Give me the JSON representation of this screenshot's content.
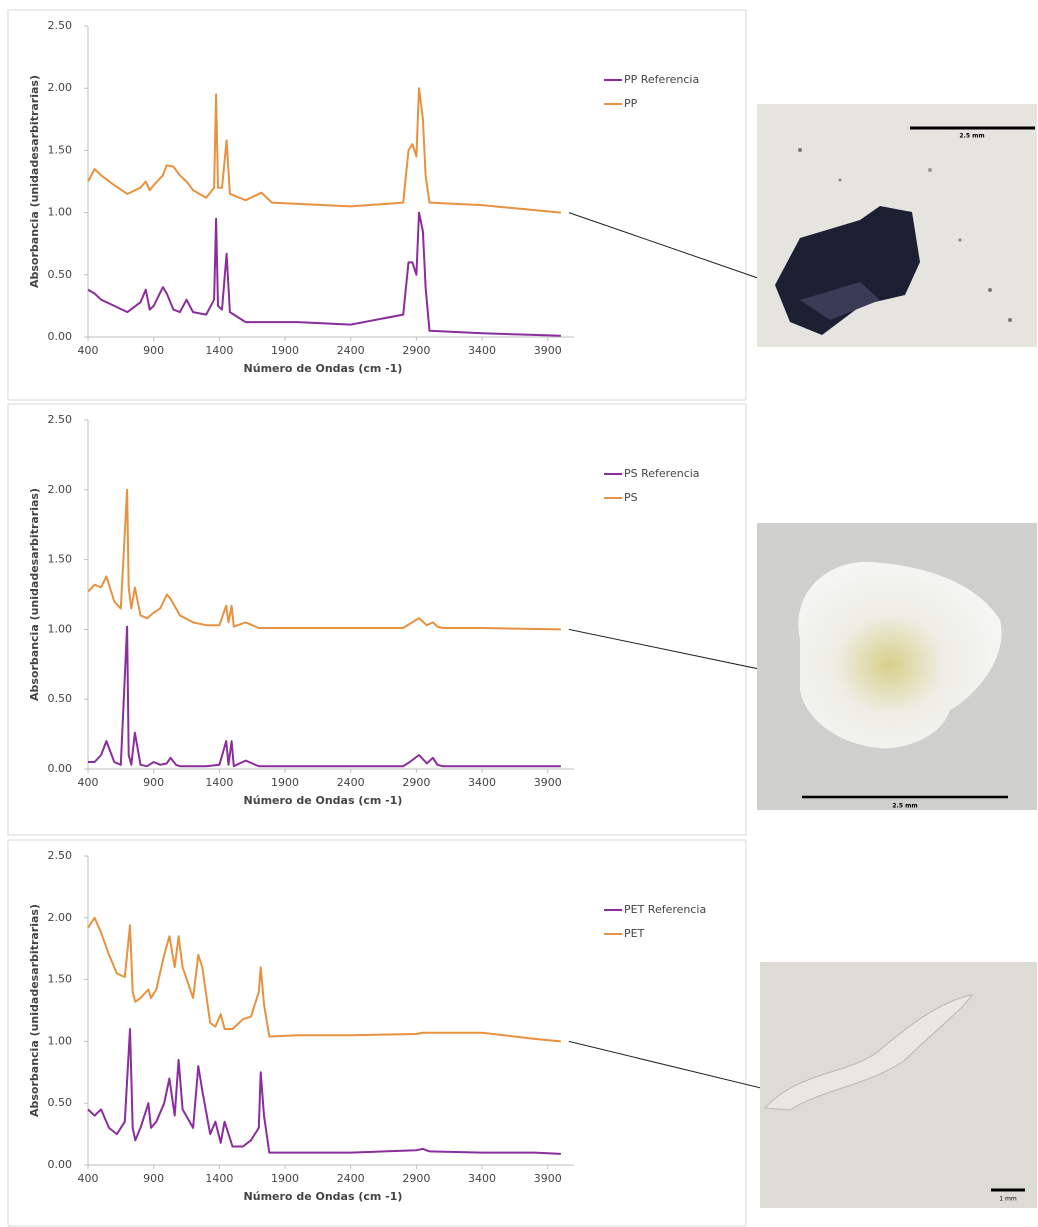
{
  "chart_data": [
    {
      "type": "line",
      "ylabel": "Absorbancia (unidadesarbitrarias)",
      "xlabel": "Número de Ondas (cm -1)",
      "x": [
        400,
        450,
        500,
        600,
        700,
        800,
        840,
        870,
        900,
        970,
        1000,
        1050,
        1100,
        1150,
        1200,
        1300,
        1360,
        1375,
        1390,
        1420,
        1455,
        1480,
        1600,
        1720,
        1800,
        2000,
        2400,
        2800,
        2840,
        2870,
        2900,
        2920,
        2950,
        2970,
        3000,
        3400,
        3700,
        4000
      ],
      "series": [
        {
          "name": "PP Referencia",
          "color": "#8b2d9c",
          "values": [
            0.38,
            0.35,
            0.3,
            0.25,
            0.2,
            0.28,
            0.38,
            0.22,
            0.25,
            0.4,
            0.35,
            0.22,
            0.2,
            0.3,
            0.2,
            0.18,
            0.3,
            0.95,
            0.25,
            0.22,
            0.67,
            0.2,
            0.12,
            0.12,
            0.12,
            0.12,
            0.1,
            0.18,
            0.6,
            0.6,
            0.5,
            1.0,
            0.85,
            0.4,
            0.05,
            0.03,
            0.02,
            0.01
          ]
        },
        {
          "name": "PP",
          "color": "#e8913e",
          "values": [
            1.25,
            1.35,
            1.3,
            1.22,
            1.15,
            1.2,
            1.25,
            1.18,
            1.22,
            1.3,
            1.38,
            1.37,
            1.3,
            1.25,
            1.18,
            1.12,
            1.2,
            1.95,
            1.2,
            1.2,
            1.58,
            1.15,
            1.1,
            1.16,
            1.08,
            1.07,
            1.05,
            1.08,
            1.5,
            1.55,
            1.45,
            2.0,
            1.75,
            1.3,
            1.08,
            1.06,
            1.03,
            1.0
          ]
        }
      ],
      "xlim": [
        400,
        4100
      ],
      "xticks": [
        400,
        900,
        1400,
        1900,
        2400,
        2900,
        3400,
        3900
      ],
      "ylim": [
        0,
        2.5
      ],
      "yticks": [
        {
          "value": 0,
          "label": "0.00"
        },
        {
          "value": 0.5,
          "label": "0.50"
        },
        {
          "value": 1,
          "label": "1.00"
        },
        {
          "value": 1.5,
          "label": "1.50"
        },
        {
          "value": 2,
          "label": "2.00"
        },
        {
          "value": 2.5,
          "label": "2.50"
        }
      ]
    },
    {
      "type": "line",
      "ylabel": "Absorbancia (unidadesarbitrarias)",
      "xlabel": "Número de Ondas (cm -1)",
      "x": [
        400,
        450,
        500,
        540,
        600,
        650,
        698,
        710,
        730,
        757,
        800,
        850,
        900,
        950,
        1000,
        1028,
        1070,
        1100,
        1200,
        1300,
        1400,
        1452,
        1470,
        1493,
        1510,
        1600,
        1700,
        2000,
        2400,
        2800,
        2850,
        2920,
        2980,
        3026,
        3060,
        3100,
        3400,
        4000
      ],
      "series": [
        {
          "name": "PS Referencia",
          "color": "#8b2d9c",
          "values": [
            0.05,
            0.05,
            0.1,
            0.2,
            0.05,
            0.03,
            1.02,
            0.1,
            0.03,
            0.26,
            0.03,
            0.02,
            0.05,
            0.03,
            0.04,
            0.08,
            0.03,
            0.02,
            0.02,
            0.02,
            0.03,
            0.2,
            0.03,
            0.2,
            0.02,
            0.06,
            0.02,
            0.02,
            0.02,
            0.02,
            0.05,
            0.1,
            0.04,
            0.08,
            0.03,
            0.02,
            0.02,
            0.02
          ]
        },
        {
          "name": "PS",
          "color": "#e8913e",
          "values": [
            1.27,
            1.32,
            1.3,
            1.38,
            1.2,
            1.15,
            2.0,
            1.3,
            1.15,
            1.3,
            1.1,
            1.08,
            1.12,
            1.15,
            1.25,
            1.22,
            1.15,
            1.1,
            1.05,
            1.03,
            1.03,
            1.17,
            1.05,
            1.17,
            1.02,
            1.05,
            1.01,
            1.01,
            1.01,
            1.01,
            1.04,
            1.08,
            1.03,
            1.05,
            1.02,
            1.01,
            1.01,
            1.0
          ]
        }
      ],
      "xlim": [
        400,
        4100
      ],
      "xticks": [
        400,
        900,
        1400,
        1900,
        2400,
        2900,
        3400,
        3900
      ],
      "ylim": [
        0,
        2.5
      ],
      "yticks": [
        {
          "value": 0,
          "label": "0.00"
        },
        {
          "value": 0.5,
          "label": "0.50"
        },
        {
          "value": 1,
          "label": "1.00"
        },
        {
          "value": 1.5,
          "label": "1.50"
        },
        {
          "value": 2,
          "label": "2.00"
        },
        {
          "value": 2.5,
          "label": "2.50"
        }
      ]
    },
    {
      "type": "line",
      "ylabel": "Absorbancia (unidadesarbitrarias)",
      "xlabel": "Número de Ondas (cm -1)",
      "x": [
        400,
        450,
        500,
        560,
        620,
        680,
        720,
        740,
        760,
        800,
        860,
        880,
        920,
        980,
        1020,
        1060,
        1090,
        1120,
        1200,
        1240,
        1270,
        1330,
        1370,
        1410,
        1440,
        1500,
        1580,
        1640,
        1700,
        1715,
        1740,
        1780,
        2000,
        2400,
        2900,
        2950,
        3000,
        3400,
        3800,
        4000
      ],
      "series": [
        {
          "name": "PET Referencia",
          "color": "#8b2d9c",
          "values": [
            0.45,
            0.4,
            0.45,
            0.3,
            0.25,
            0.35,
            1.1,
            0.3,
            0.2,
            0.3,
            0.5,
            0.3,
            0.35,
            0.5,
            0.7,
            0.4,
            0.85,
            0.45,
            0.3,
            0.8,
            0.6,
            0.25,
            0.35,
            0.18,
            0.35,
            0.15,
            0.15,
            0.2,
            0.3,
            0.75,
            0.4,
            0.1,
            0.1,
            0.1,
            0.12,
            0.13,
            0.11,
            0.1,
            0.1,
            0.09
          ]
        },
        {
          "name": "PET",
          "color": "#e8913e",
          "values": [
            1.92,
            2.0,
            1.88,
            1.7,
            1.55,
            1.52,
            1.94,
            1.4,
            1.32,
            1.35,
            1.42,
            1.35,
            1.42,
            1.7,
            1.85,
            1.6,
            1.85,
            1.6,
            1.35,
            1.7,
            1.6,
            1.15,
            1.12,
            1.22,
            1.1,
            1.1,
            1.18,
            1.2,
            1.4,
            1.6,
            1.3,
            1.04,
            1.05,
            1.05,
            1.06,
            1.07,
            1.07,
            1.07,
            1.02,
            1.0
          ]
        }
      ],
      "xlim": [
        400,
        4100
      ],
      "xticks": [
        400,
        900,
        1400,
        1900,
        2400,
        2900,
        3400,
        3900
      ],
      "ylim": [
        0,
        2.5
      ],
      "yticks": [
        {
          "value": 0,
          "label": "0.00"
        },
        {
          "value": 0.5,
          "label": "0.50"
        },
        {
          "value": 1,
          "label": "1.00"
        },
        {
          "value": 1.5,
          "label": "1.50"
        },
        {
          "value": 2,
          "label": "2.00"
        },
        {
          "value": 2.5,
          "label": "2.50"
        }
      ]
    }
  ],
  "photos": [
    {
      "scale_label": "2.5 mm"
    },
    {
      "scale_label": "2.5 mm"
    },
    {
      "scale_label": "1 mm"
    }
  ]
}
